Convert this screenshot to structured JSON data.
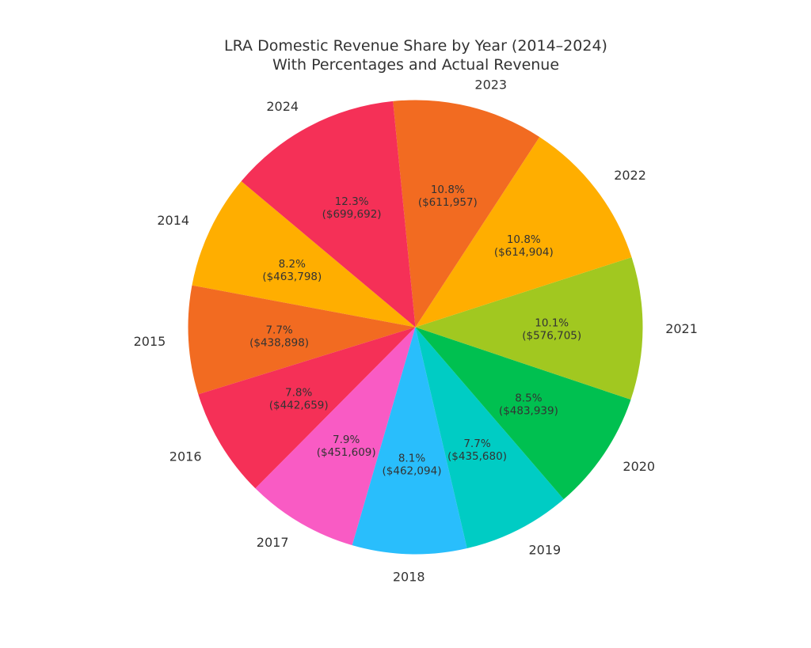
{
  "chart_data": {
    "type": "pie",
    "title": "LRA Domestic Revenue Share by Year (2014–2024)",
    "subtitle": "With Percentages and Actual Revenue",
    "categories": [
      "2014",
      "2015",
      "2016",
      "2017",
      "2018",
      "2019",
      "2020",
      "2021",
      "2022",
      "2023",
      "2024"
    ],
    "values": [
      463798,
      438898,
      442659,
      451609,
      462094,
      435680,
      483939,
      576705,
      614904,
      611957,
      699692
    ],
    "percent_labels": [
      "8.2%",
      "7.7%",
      "7.8%",
      "7.9%",
      "8.1%",
      "7.7%",
      "8.5%",
      "10.1%",
      "10.8%",
      "10.8%",
      "12.3%"
    ],
    "value_labels": [
      "($463,798)",
      "($438,898)",
      "($442,659)",
      "($451,609)",
      "($462,094)",
      "($435,680)",
      "($483,939)",
      "($576,705)",
      "($614,904)",
      "($611,957)",
      "($699,692)"
    ],
    "colors": [
      "#FFAE00",
      "#F26B21",
      "#F53057",
      "#F95BC4",
      "#29BEFC",
      "#00CCC4",
      "#00C050",
      "#A1C820",
      "#FFAE00",
      "#F26B21",
      "#F53057"
    ],
    "start_angle_deg": 140,
    "direction": "counterclockwise",
    "legend": "none"
  }
}
